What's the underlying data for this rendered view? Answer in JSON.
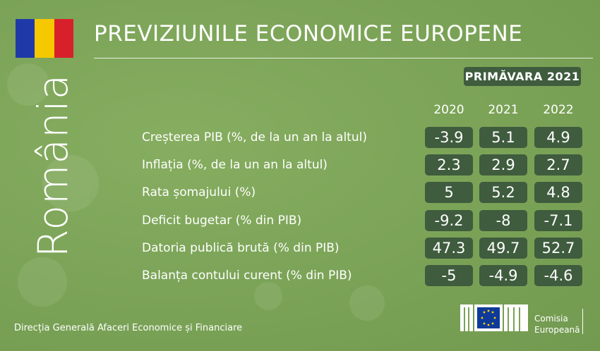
{
  "header": {
    "title": "PREVIZIUNILE ECONOMICE EUROPENE",
    "country": "România",
    "edition": "PRIMĂVARA 2021"
  },
  "table": {
    "columns": [
      "2020",
      "2021",
      "2022"
    ],
    "rows": [
      {
        "label": "Creșterea PIB (%, de la un an la altul)",
        "values": [
          -3.9,
          5.1,
          4.9
        ]
      },
      {
        "label": "Inflația (%, de la un an la altul)",
        "values": [
          2.3,
          2.9,
          2.7
        ]
      },
      {
        "label": "Rata șomajului (%)",
        "values": [
          5,
          5.2,
          4.8
        ]
      },
      {
        "label": "Deficit bugetar (% din PIB)",
        "values": [
          -9.2,
          -8,
          -7.1
        ]
      },
      {
        "label": "Datoria publică brută (% din PIB)",
        "values": [
          47.3,
          49.7,
          52.7
        ]
      },
      {
        "label": "Balanța contului curent (% din PIB)",
        "values": [
          -5,
          -4.9,
          -4.6
        ]
      }
    ]
  },
  "footer": {
    "department": "Direcția Generală Afaceri Economice și Financiare",
    "logo_line1": "Comisia",
    "logo_line2": "Europeană"
  }
}
